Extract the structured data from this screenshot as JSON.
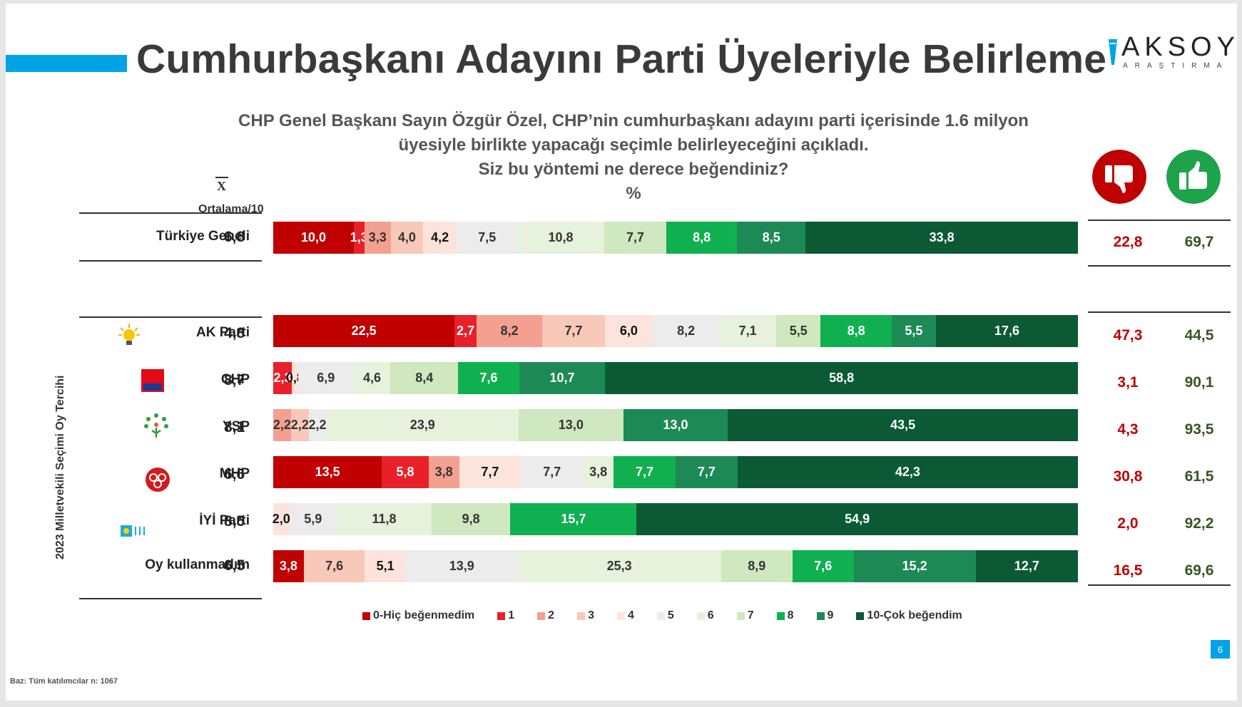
{
  "title": "Cumhurbaşkanı Adayını Parti Üyeleriyle Belirleme",
  "logo": {
    "word": "AKSOY",
    "sub": "ARAŞTIRMA"
  },
  "question": {
    "line1": "CHP Genel Başkanı Sayın Özgür Özel, CHP’nin cumhurbaşkanı adayını parti içerisinde 1.6 milyon",
    "line2": "üyesiyle birlikte yapacağı seçimle belirleyeceğini açıkladı.",
    "line3": "Siz bu yöntemi ne derece beğendiniz?",
    "unit": "%"
  },
  "mean_header": {
    "symbol": "X",
    "caption": "Ortalama/10"
  },
  "side_label": "2023 Milletvekili Seçimi Oy Tercihi",
  "icons": {
    "dislike": "thumbs-down-icon",
    "like": "thumbs-up-icon"
  },
  "colors": {
    "scale": [
      "#c00000",
      "#e8202a",
      "#f4a090",
      "#f8c8b8",
      "#fce4dc",
      "#ececec",
      "#e6f2dc",
      "#cfe8bf",
      "#10b050",
      "#1d8a55",
      "#0c5a35"
    ],
    "dislike_total": "#c00000",
    "like_total": "#375623",
    "accent": "#00a3e6"
  },
  "chart_data": {
    "type": "bar",
    "orientation": "horizontal-stacked-100",
    "categories": [
      "Türkiye Geneli",
      "AK Parti",
      "CHP",
      "YSP",
      "MHP",
      "İYİ Parti",
      "Oy kullanmadım"
    ],
    "scale_labels": [
      "0-Hiç beğenmedim",
      "1",
      "2",
      "3",
      "4",
      "5",
      "6",
      "7",
      "8",
      "9",
      "10-Çok beğendim"
    ],
    "legend": [
      {
        "label": "0-Hiç beğenmedim",
        "color": "#c00000"
      },
      {
        "label": "1",
        "color": "#e8202a"
      },
      {
        "label": "2",
        "color": "#f4a090"
      },
      {
        "label": "3",
        "color": "#f8c8b8"
      },
      {
        "label": "4",
        "color": "#fce4dc"
      },
      {
        "label": "5",
        "color": "#ececec"
      },
      {
        "label": "6",
        "color": "#e6f2dc"
      },
      {
        "label": "7",
        "color": "#cfe8bf"
      },
      {
        "label": "8",
        "color": "#10b050"
      },
      {
        "label": "9",
        "color": "#1d8a55"
      },
      {
        "label": "10-Çok beğendim",
        "color": "#0c5a35"
      }
    ],
    "rows": [
      {
        "name": "Türkiye Geneli",
        "mean": "6,8",
        "dislike": "22,8",
        "like": "69,7",
        "segments": [
          {
            "score": 0,
            "value": 10.0,
            "label": "10,0"
          },
          {
            "score": 1,
            "value": 1.3,
            "label": "1,3"
          },
          {
            "score": 2,
            "value": 3.3,
            "label": "3,3"
          },
          {
            "score": 3,
            "value": 4.0,
            "label": "4,0"
          },
          {
            "score": 4,
            "value": 4.2,
            "label": "4,2"
          },
          {
            "score": 5,
            "value": 7.5,
            "label": "7,5"
          },
          {
            "score": 6,
            "value": 10.8,
            "label": "10,8"
          },
          {
            "score": 7,
            "value": 7.7,
            "label": "7,7"
          },
          {
            "score": 8,
            "value": 8.8,
            "label": "8,8"
          },
          {
            "score": 9,
            "value": 8.5,
            "label": "8,5"
          },
          {
            "score": 10,
            "value": 33.8,
            "label": "33,8"
          }
        ]
      },
      {
        "name": "AK Parti",
        "mean": "4,8",
        "dislike": "47,3",
        "like": "44,5",
        "segments": [
          {
            "score": 0,
            "value": 22.5,
            "label": "22,5"
          },
          {
            "score": 1,
            "value": 2.7,
            "label": "2,7"
          },
          {
            "score": 2,
            "value": 8.2,
            "label": "8,2"
          },
          {
            "score": 3,
            "value": 7.7,
            "label": "7,7"
          },
          {
            "score": 4,
            "value": 6.0,
            "label": "6,0"
          },
          {
            "score": 5,
            "value": 8.2,
            "label": "8,2"
          },
          {
            "score": 6,
            "value": 7.1,
            "label": "7,1"
          },
          {
            "score": 7,
            "value": 5.5,
            "label": "5,5"
          },
          {
            "score": 8,
            "value": 8.8,
            "label": "8,8"
          },
          {
            "score": 9,
            "value": 5.5,
            "label": "5,5"
          },
          {
            "score": 10,
            "value": 17.6,
            "label": "17,6"
          }
        ]
      },
      {
        "name": "CHP",
        "mean": "8,7",
        "dislike": "3,1",
        "like": "90,1",
        "segments": [
          {
            "score": 1,
            "value": 2.3,
            "label": "2,3"
          },
          {
            "score": 4,
            "value": 0.8,
            "label": "0,8"
          },
          {
            "score": 5,
            "value": 6.9,
            "label": "6,9"
          },
          {
            "score": 6,
            "value": 4.6,
            "label": "4,6"
          },
          {
            "score": 7,
            "value": 8.4,
            "label": "8,4"
          },
          {
            "score": 8,
            "value": 7.6,
            "label": "7,6"
          },
          {
            "score": 9,
            "value": 10.7,
            "label": "10,7"
          },
          {
            "score": 10,
            "value": 58.8,
            "label": "58,8"
          }
        ]
      },
      {
        "name": "YSP",
        "mean": "8,1",
        "dislike": "4,3",
        "like": "93,5",
        "segments": [
          {
            "score": 2,
            "value": 2.2,
            "label": "2,2"
          },
          {
            "score": 3,
            "value": 2.2,
            "label": "2,2"
          },
          {
            "score": 5,
            "value": 2.2,
            "label": "2,2"
          },
          {
            "score": 6,
            "value": 23.9,
            "label": "23,9"
          },
          {
            "score": 7,
            "value": 13.0,
            "label": "13,0"
          },
          {
            "score": 9,
            "value": 13.0,
            "label": "13,0"
          },
          {
            "score": 10,
            "value": 43.5,
            "label": "43,5"
          }
        ]
      },
      {
        "name": "MHP",
        "mean": "6,6",
        "dislike": "30,8",
        "like": "61,5",
        "segments": [
          {
            "score": 0,
            "value": 13.5,
            "label": "13,5"
          },
          {
            "score": 1,
            "value": 5.8,
            "label": "5,8"
          },
          {
            "score": 2,
            "value": 3.8,
            "label": "3,8"
          },
          {
            "score": 4,
            "value": 7.7,
            "label": "7,7"
          },
          {
            "score": 5,
            "value": 7.7,
            "label": "7,7"
          },
          {
            "score": 6,
            "value": 3.8,
            "label": "3,8"
          },
          {
            "score": 8,
            "value": 7.7,
            "label": "7,7"
          },
          {
            "score": 9,
            "value": 7.7,
            "label": "7,7"
          },
          {
            "score": 10,
            "value": 42.3,
            "label": "42,3"
          }
        ]
      },
      {
        "name": "İYİ Parti",
        "mean": "8,5",
        "dislike": "2,0",
        "like": "92,2",
        "segments": [
          {
            "score": 4,
            "value": 2.0,
            "label": "2,0"
          },
          {
            "score": 5,
            "value": 5.9,
            "label": "5,9"
          },
          {
            "score": 6,
            "value": 11.8,
            "label": "11,8"
          },
          {
            "score": 7,
            "value": 9.8,
            "label": "9,8"
          },
          {
            "score": 8,
            "value": 15.7,
            "label": "15,7"
          },
          {
            "score": 10,
            "value": 54.9,
            "label": "54,9"
          }
        ]
      },
      {
        "name": "Oy kullanmadım",
        "mean": "6,5",
        "dislike": "16,5",
        "like": "69,6",
        "segments": [
          {
            "score": 0,
            "value": 3.8,
            "label": "3,8"
          },
          {
            "score": 3,
            "value": 7.6,
            "label": "7,6"
          },
          {
            "score": 4,
            "value": 5.1,
            "label": "5,1"
          },
          {
            "score": 5,
            "value": 13.9,
            "label": "13,9"
          },
          {
            "score": 6,
            "value": 25.3,
            "label": "25,3"
          },
          {
            "score": 7,
            "value": 8.9,
            "label": "8,9"
          },
          {
            "score": 8,
            "value": 7.6,
            "label": "7,6"
          },
          {
            "score": 9,
            "value": 15.2,
            "label": "15,2"
          },
          {
            "score": 10,
            "value": 12.7,
            "label": "12,7"
          }
        ]
      }
    ]
  },
  "base_note": "Baz: Tüm katılımcılar n: 1067",
  "page_number": "6"
}
